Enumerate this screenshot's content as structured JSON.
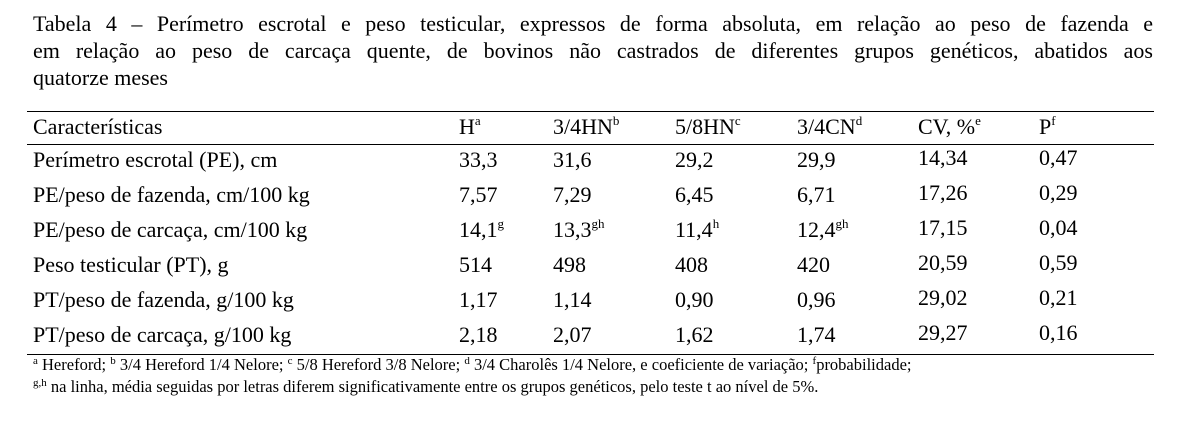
{
  "caption": {
    "line1": "Tabela 4 – Perímetro escrotal e peso testicular, expressos de forma absoluta, em relação ao peso de fazenda e",
    "line2": "em relação ao peso de carcaça quente, de bovinos não castrados de diferentes grupos genéticos, abatidos aos",
    "line3": "quatorze meses"
  },
  "table": {
    "headers": {
      "label": "Características",
      "h": "H",
      "h_sup": "a",
      "h34": "3/4HN",
      "h34_sup": "b",
      "h58": "5/8HN",
      "h58_sup": "c",
      "cn": "3/4CN",
      "cn_sup": "d",
      "cv": "CV, %",
      "cv_sup": "e",
      "p": "P",
      "p_sup": "f"
    },
    "rows": [
      {
        "label": "Perímetro escrotal (PE), cm",
        "h": "33,3",
        "h_sup": "",
        "h34": "31,6",
        "h34_sup": "",
        "h58": "29,2",
        "h58_sup": "",
        "cn": "29,9",
        "cn_sup": "",
        "cv": "14,34",
        "p": "0,47"
      },
      {
        "label": "PE/peso de fazenda, cm/100 kg",
        "h": "7,57",
        "h_sup": "",
        "h34": "7,29",
        "h34_sup": "",
        "h58": "6,45",
        "h58_sup": "",
        "cn": "6,71",
        "cn_sup": "",
        "cv": "17,26",
        "p": "0,29"
      },
      {
        "label": "PE/peso de carcaça, cm/100 kg",
        "h": "14,1",
        "h_sup": "g",
        "h34": "13,3",
        "h34_sup": "gh",
        "h58": "11,4",
        "h58_sup": "h",
        "cn": "12,4",
        "cn_sup": "gh",
        "cv": "17,15",
        "p": "0,04"
      },
      {
        "label": "Peso testicular (PT), g",
        "h": "514",
        "h_sup": "",
        "h34": "498",
        "h34_sup": "",
        "h58": "408",
        "h58_sup": "",
        "cn": "420",
        "cn_sup": "",
        "cv": "20,59",
        "p": "0,59"
      },
      {
        "label": "PT/peso de fazenda, g/100 kg",
        "h": "1,17",
        "h_sup": "",
        "h34": "1,14",
        "h34_sup": "",
        "h58": "0,90",
        "h58_sup": "",
        "cn": "0,96",
        "cn_sup": "",
        "cv": "29,02",
        "p": "0,21"
      },
      {
        "label": "PT/peso de carcaça, g/100 kg",
        "h": "2,18",
        "h_sup": "",
        "h34": "2,07",
        "h34_sup": "",
        "h58": "1,62",
        "h58_sup": "",
        "cn": "1,74",
        "cn_sup": "",
        "cv": "29,27",
        "p": "0,16"
      }
    ]
  },
  "footnotes": {
    "a_sup": "a",
    "a_text": " Hereford; ",
    "b_sup": "b",
    "b_text": " 3/4 Hereford 1/4 Nelore; ",
    "c_sup": "c",
    "c_text": " 5/8 Hereford 3/8 Nelore; ",
    "d_sup": "d",
    "d_text": " 3/4 Charolês 1/4 Nelore, e coeficiente de variação; ",
    "f_sup": "f",
    "f_text": "probabilidade;",
    "gh_sup": "g,h",
    "gh_text": " na linha, média seguidas por letras diferem significativamente entre os grupos genéticos, pelo teste t ao nível de 5%."
  }
}
